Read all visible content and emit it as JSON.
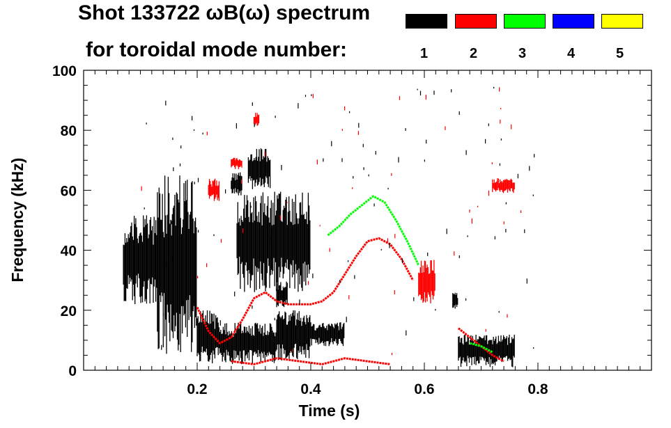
{
  "chart_data": {
    "type": "heatmap",
    "title_line1": "Shot 133722 ωB(ω) spectrum",
    "title_line2": "for toroidal mode number:",
    "xlabel": "Time (s)",
    "ylabel": "Frequency (kHz)",
    "xlim": [
      0.0,
      1.0
    ],
    "ylim": [
      0,
      100
    ],
    "x_ticks": [
      0.2,
      0.4,
      0.6,
      0.8
    ],
    "x_ticklabels": [
      "0.2",
      "0.4",
      "0.6",
      "0.8"
    ],
    "y_ticks": [
      0,
      20,
      40,
      60,
      80,
      100
    ],
    "y_ticklabels": [
      "0",
      "20",
      "40",
      "60",
      "80",
      "100"
    ],
    "legend": [
      {
        "mode": "1",
        "color": "#000000"
      },
      {
        "mode": "2",
        "color": "#ff0000"
      },
      {
        "mode": "3",
        "color": "#00ff00"
      },
      {
        "mode": "4",
        "color": "#0000ff"
      },
      {
        "mode": "5",
        "color": "#ffff00"
      }
    ],
    "blobs": [
      {
        "mode": 1,
        "t0": 0.07,
        "t1": 0.13,
        "f0": 22,
        "f1": 52
      },
      {
        "mode": 1,
        "t0": 0.13,
        "t1": 0.2,
        "f0": 5,
        "f1": 65
      },
      {
        "mode": 1,
        "t0": 0.2,
        "t1": 0.24,
        "f0": 2,
        "f1": 20
      },
      {
        "mode": 1,
        "t0": 0.24,
        "t1": 0.34,
        "f0": 2,
        "f1": 16
      },
      {
        "mode": 1,
        "t0": 0.34,
        "t1": 0.4,
        "f0": 3,
        "f1": 20
      },
      {
        "mode": 1,
        "t0": 0.4,
        "t1": 0.46,
        "f0": 8,
        "f1": 16
      },
      {
        "mode": 1,
        "t0": 0.26,
        "t1": 0.28,
        "f0": 58,
        "f1": 66
      },
      {
        "mode": 1,
        "t0": 0.29,
        "t1": 0.33,
        "f0": 60,
        "f1": 74
      },
      {
        "mode": 1,
        "t0": 0.27,
        "t1": 0.4,
        "f0": 26,
        "f1": 60
      },
      {
        "mode": 1,
        "t0": 0.34,
        "t1": 0.36,
        "f0": 20,
        "f1": 30
      },
      {
        "mode": 1,
        "t0": 0.65,
        "t1": 0.66,
        "f0": 20,
        "f1": 26
      },
      {
        "mode": 1,
        "t0": 0.66,
        "t1": 0.76,
        "f0": 1,
        "f1": 12
      },
      {
        "mode": 2,
        "t0": 0.59,
        "t1": 0.62,
        "f0": 22,
        "f1": 37
      },
      {
        "mode": 2,
        "t0": 0.22,
        "t1": 0.24,
        "f0": 56,
        "f1": 64
      },
      {
        "mode": 2,
        "t0": 0.26,
        "t1": 0.28,
        "f0": 67,
        "f1": 71
      },
      {
        "mode": 2,
        "t0": 0.3,
        "t1": 0.31,
        "f0": 81,
        "f1": 86
      },
      {
        "mode": 2,
        "t0": 0.72,
        "t1": 0.76,
        "f0": 59,
        "f1": 64
      }
    ],
    "series": [
      {
        "mode": 2,
        "x": [
          0.2,
          0.22,
          0.24,
          0.26,
          0.28,
          0.3,
          0.32,
          0.34,
          0.36,
          0.38,
          0.4,
          0.42,
          0.44,
          0.46,
          0.48,
          0.5,
          0.52,
          0.54,
          0.56,
          0.58
        ],
        "y": [
          21,
          13,
          9,
          11,
          17,
          24,
          26,
          23,
          22,
          22,
          22,
          23,
          26,
          32,
          38,
          43,
          44,
          42,
          37,
          30
        ]
      },
      {
        "mode": 3,
        "x": [
          0.43,
          0.45,
          0.47,
          0.49,
          0.51,
          0.53,
          0.55,
          0.57,
          0.59
        ],
        "y": [
          45,
          48,
          52,
          55,
          58,
          56,
          50,
          43,
          35
        ]
      },
      {
        "mode": 2,
        "x": [
          0.26,
          0.3,
          0.34,
          0.38,
          0.42,
          0.46,
          0.5,
          0.54
        ],
        "y": [
          3,
          2,
          4,
          3,
          2,
          4,
          3,
          2
        ]
      },
      {
        "mode": 2,
        "x": [
          0.66,
          0.68,
          0.7,
          0.72,
          0.74
        ],
        "y": [
          14,
          11,
          8,
          5,
          3
        ]
      },
      {
        "mode": 3,
        "x": [
          0.68,
          0.7,
          0.72
        ],
        "y": [
          9,
          8,
          6
        ]
      }
    ],
    "grid": false
  }
}
